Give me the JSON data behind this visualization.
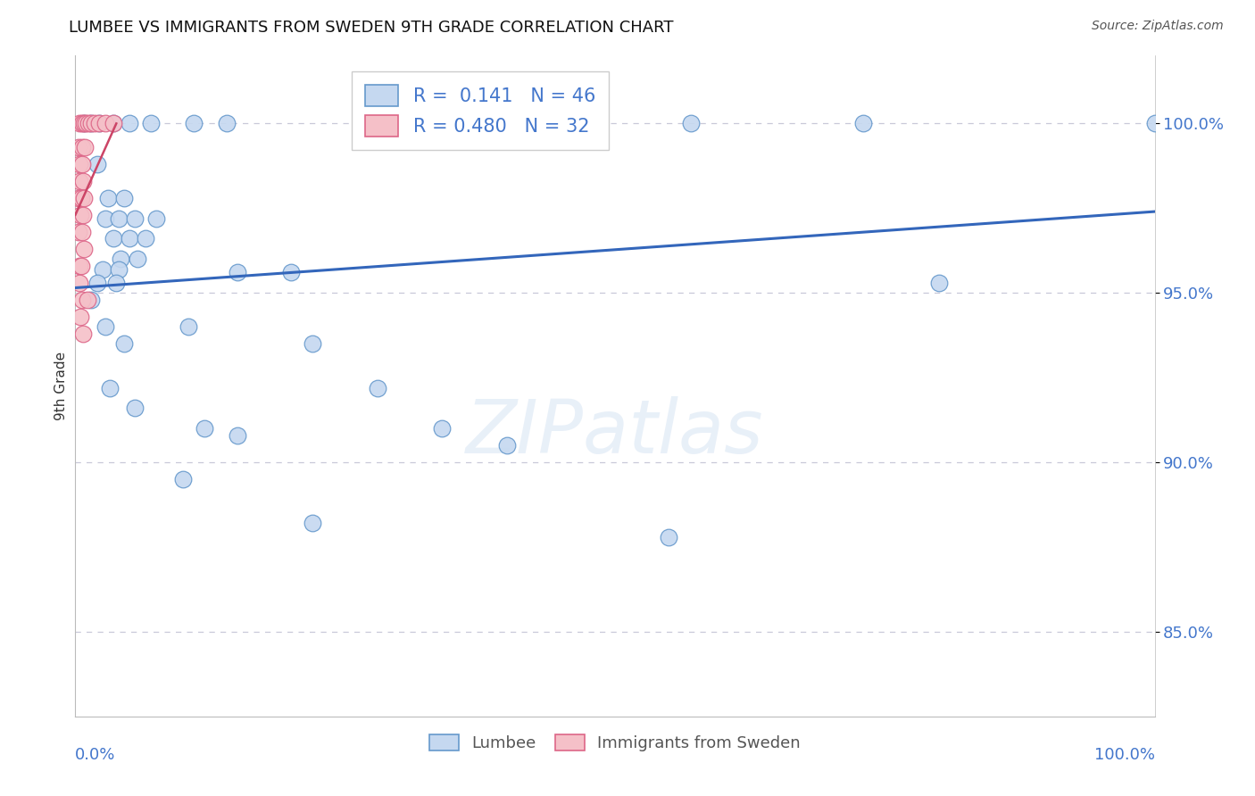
{
  "title": "LUMBEE VS IMMIGRANTS FROM SWEDEN 9TH GRADE CORRELATION CHART",
  "source": "Source: ZipAtlas.com",
  "ylabel": "9th Grade",
  "R_blue": 0.141,
  "N_blue": 46,
  "R_pink": 0.48,
  "N_pink": 32,
  "legend_label_blue": "Lumbee",
  "legend_label_pink": "Immigrants from Sweden",
  "watermark": "ZIPatlas",
  "blue_dot_face": "#c5d8f0",
  "blue_dot_edge": "#6699cc",
  "pink_dot_face": "#f5c0c8",
  "pink_dot_edge": "#dd6688",
  "line_blue_color": "#3366bb",
  "line_pink_color": "#cc4466",
  "tick_color": "#4477cc",
  "grid_color": "#c8c8d8",
  "title_color": "#111111",
  "source_color": "#555555",
  "ylabel_color": "#333333",
  "blue_dots": [
    [
      0.8,
      100.0
    ],
    [
      1.5,
      100.0
    ],
    [
      2.2,
      100.0
    ],
    [
      3.5,
      100.0
    ],
    [
      5.0,
      100.0
    ],
    [
      7.0,
      100.0
    ],
    [
      11.0,
      100.0
    ],
    [
      14.0,
      100.0
    ],
    [
      33.0,
      100.0
    ],
    [
      57.0,
      100.0
    ],
    [
      73.0,
      100.0
    ],
    [
      100.0,
      100.0
    ],
    [
      2.0,
      98.8
    ],
    [
      3.0,
      97.8
    ],
    [
      4.5,
      97.8
    ],
    [
      2.8,
      97.2
    ],
    [
      4.0,
      97.2
    ],
    [
      5.5,
      97.2
    ],
    [
      7.5,
      97.2
    ],
    [
      3.5,
      96.6
    ],
    [
      5.0,
      96.6
    ],
    [
      6.5,
      96.6
    ],
    [
      4.2,
      96.0
    ],
    [
      5.8,
      96.0
    ],
    [
      2.5,
      95.7
    ],
    [
      4.0,
      95.7
    ],
    [
      2.0,
      95.3
    ],
    [
      3.8,
      95.3
    ],
    [
      15.0,
      95.6
    ],
    [
      20.0,
      95.6
    ],
    [
      1.5,
      94.8
    ],
    [
      2.8,
      94.0
    ],
    [
      10.5,
      94.0
    ],
    [
      4.5,
      93.5
    ],
    [
      22.0,
      93.5
    ],
    [
      3.2,
      92.2
    ],
    [
      28.0,
      92.2
    ],
    [
      5.5,
      91.6
    ],
    [
      12.0,
      91.0
    ],
    [
      34.0,
      91.0
    ],
    [
      15.0,
      90.8
    ],
    [
      80.0,
      95.3
    ],
    [
      10.0,
      89.5
    ],
    [
      22.0,
      88.2
    ],
    [
      40.0,
      90.5
    ],
    [
      55.0,
      87.8
    ]
  ],
  "pink_dots": [
    [
      0.4,
      100.0
    ],
    [
      0.6,
      100.0
    ],
    [
      0.8,
      100.0
    ],
    [
      1.0,
      100.0
    ],
    [
      1.2,
      100.0
    ],
    [
      1.5,
      100.0
    ],
    [
      1.8,
      100.0
    ],
    [
      2.2,
      100.0
    ],
    [
      2.8,
      100.0
    ],
    [
      3.5,
      100.0
    ],
    [
      0.3,
      99.3
    ],
    [
      0.6,
      99.3
    ],
    [
      0.9,
      99.3
    ],
    [
      0.35,
      98.8
    ],
    [
      0.65,
      98.8
    ],
    [
      0.4,
      98.3
    ],
    [
      0.7,
      98.3
    ],
    [
      0.3,
      97.8
    ],
    [
      0.55,
      97.8
    ],
    [
      0.8,
      97.8
    ],
    [
      0.45,
      97.3
    ],
    [
      0.7,
      97.3
    ],
    [
      0.3,
      96.8
    ],
    [
      0.6,
      96.8
    ],
    [
      0.8,
      96.3
    ],
    [
      0.35,
      95.8
    ],
    [
      0.55,
      95.8
    ],
    [
      0.4,
      95.3
    ],
    [
      0.6,
      94.8
    ],
    [
      1.1,
      94.8
    ],
    [
      0.45,
      94.3
    ],
    [
      0.7,
      93.8
    ]
  ],
  "yticks": [
    85.0,
    90.0,
    95.0,
    100.0
  ],
  "ylim_bottom": 82.5,
  "ylim_top": 102.0,
  "xlim_left": 0.0,
  "xlim_right": 100.0,
  "trendline_blue_x0": 0.0,
  "trendline_blue_x1": 100.0,
  "trendline_pink_x0": 0.0,
  "trendline_pink_x1": 3.8
}
